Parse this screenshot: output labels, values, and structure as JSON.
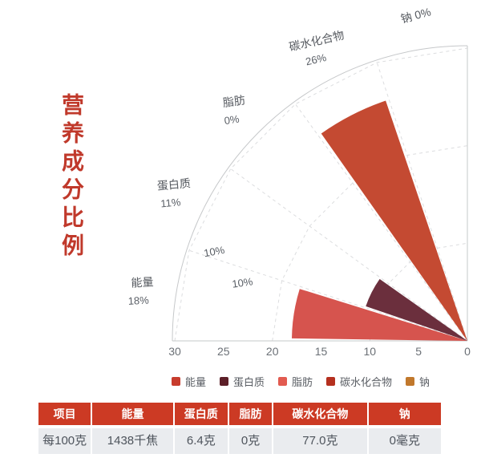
{
  "title": {
    "text": "营养成分比例",
    "color": "#c0392b"
  },
  "chart_data": {
    "type": "bar",
    "subtype": "polar-fan-quarter",
    "categories": [
      "能量",
      "蛋白质",
      "脂肪",
      "碳水化合物",
      "钠"
    ],
    "values": [
      18,
      11,
      0,
      26,
      0
    ],
    "value_labels": [
      "18%",
      "11%",
      "0%",
      "26%",
      "0%"
    ],
    "series_colors": [
      "#d6544e",
      "#6b2f3d",
      "#e25b50",
      "#c44a32",
      "#c1782c"
    ],
    "radius_axis": {
      "min": 0,
      "max": 30,
      "ticks": [
        "30",
        "25",
        "20",
        "15",
        "10",
        "5",
        "0"
      ]
    },
    "angle_span_deg": 90,
    "grid": "dashed radial spokes + polygon rings",
    "inner_labels": [
      "10%",
      "10%"
    ],
    "legend_position": "bottom"
  },
  "legend": {
    "items": [
      {
        "label": "能量",
        "color": "#c73c2d"
      },
      {
        "label": "蛋白质",
        "color": "#5c1f28"
      },
      {
        "label": "脂肪",
        "color": "#e25b50"
      },
      {
        "label": "碳水化合物",
        "color": "#b5301f"
      },
      {
        "label": "钠",
        "color": "#c1782c"
      }
    ]
  },
  "table": {
    "headers": [
      "项目",
      "能量",
      "蛋白质",
      "脂肪",
      "碳水化合物",
      "钠"
    ],
    "rows": [
      [
        "每100克",
        "1438千焦",
        "6.4克",
        "0克",
        "77.0克",
        "0毫克"
      ]
    ],
    "header_bg": "#cc3a24",
    "header_text_color": "#ffffff",
    "row_bg": "#eaecef"
  }
}
